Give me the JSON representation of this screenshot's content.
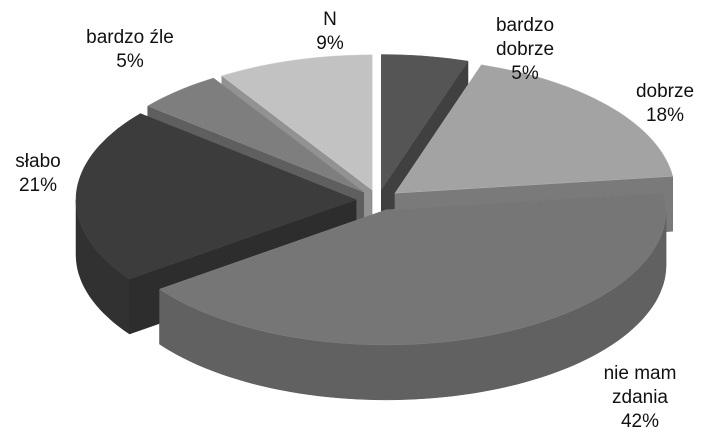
{
  "chart_data": {
    "type": "pie",
    "categories": [
      "bardzo dobrze",
      "dobrze",
      "nie mam zdania",
      "słabo",
      "bardzo źle",
      "N"
    ],
    "values": [
      5,
      18,
      42,
      21,
      5,
      9
    ],
    "value_labels": [
      "5%",
      "18%",
      "42%",
      "21%",
      "5%",
      "9%"
    ],
    "colors": [
      "#555555",
      "#a3a3a3",
      "#767676",
      "#3c3c3c",
      "#7e7e7e",
      "#c2c2c2"
    ]
  }
}
